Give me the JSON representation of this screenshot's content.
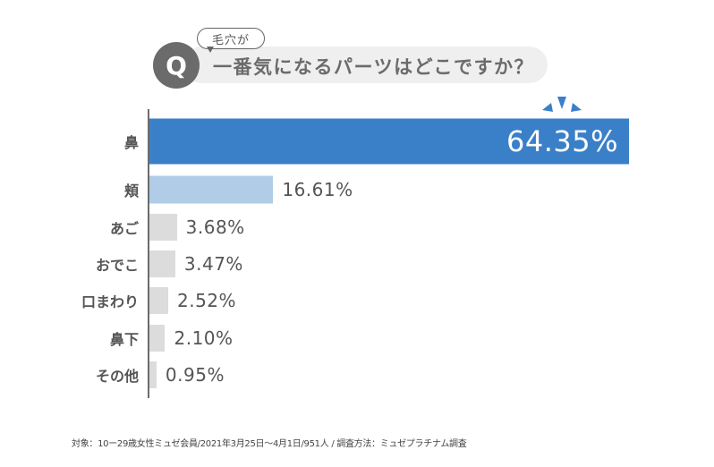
{
  "question": {
    "badge": "Q",
    "bubble": "毛穴が",
    "text": "一番気になるパーツはどこですか？"
  },
  "chart_data": {
    "type": "bar",
    "orientation": "horizontal",
    "categories": [
      "鼻",
      "頬",
      "あご",
      "おでこ",
      "口まわり",
      "鼻下",
      "その他"
    ],
    "values": [
      64.35,
      16.61,
      3.68,
      3.47,
      2.52,
      2.1,
      0.95
    ],
    "labels": [
      "64.35%",
      "16.61%",
      "3.68%",
      "3.47%",
      "2.52%",
      "2.10%",
      "0.95%"
    ],
    "colors": [
      "#3a80c8",
      "#b0cce6",
      "#dcdcdc",
      "#dcdcdc",
      "#dcdcdc",
      "#dcdcdc",
      "#dcdcdc"
    ],
    "unit": "%",
    "xlim": [
      0,
      64.35
    ],
    "grid": false
  },
  "footnote": "対象：10ー29歳女性ミュゼ会員/2021年3月25日〜4月1日/951人 / 調査方法：ミュゼプラチナム調査"
}
